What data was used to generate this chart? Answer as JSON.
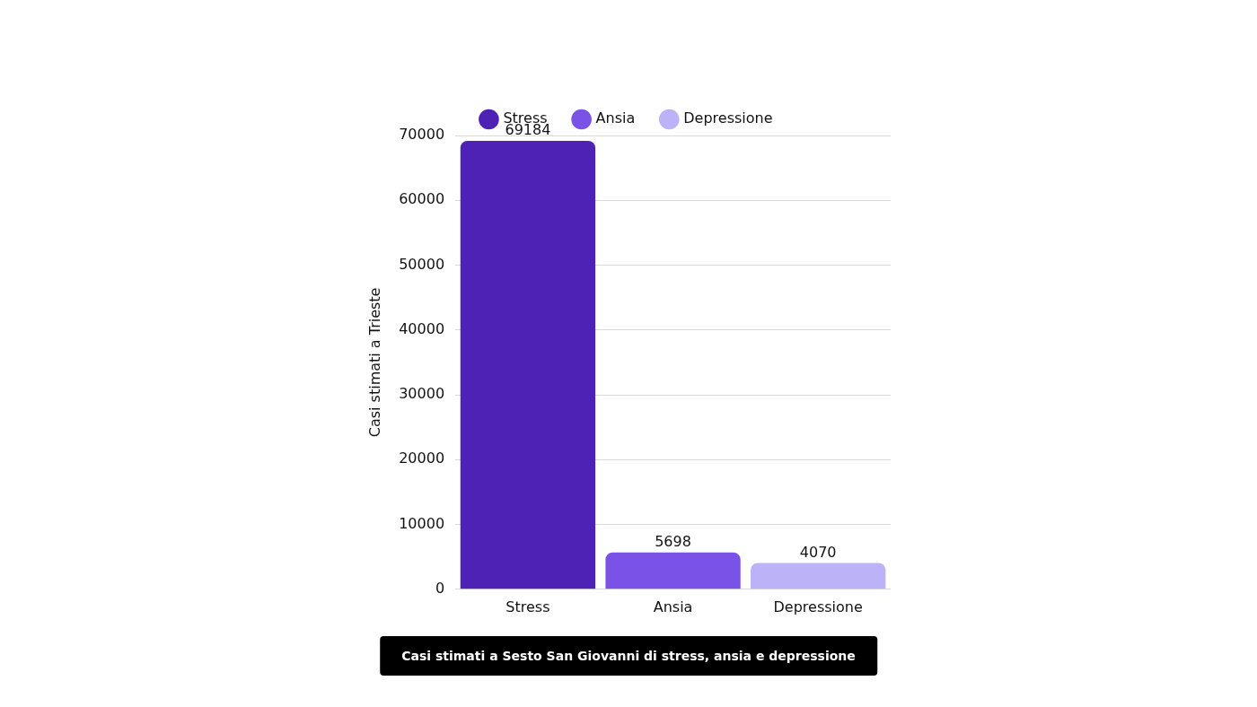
{
  "chart_data": {
    "type": "bar",
    "title": "Casi stimati a Sesto San Giovanni di stress, ansia e depressione",
    "ylabel": "Casi stimati a Trieste",
    "categories": [
      "Stress",
      "Ansia",
      "Depressione"
    ],
    "series": [
      {
        "name": "Stress",
        "color": "#4e22b5",
        "values": [
          69184,
          null,
          null
        ]
      },
      {
        "name": "Ansia",
        "color": "#7b52e8",
        "values": [
          null,
          5698,
          null
        ]
      },
      {
        "name": "Depressione",
        "color": "#bcb2f7",
        "values": [
          null,
          null,
          4070
        ]
      }
    ],
    "ylim": [
      0,
      70000
    ],
    "yticks": [
      0,
      10000,
      20000,
      30000,
      40000,
      50000,
      60000,
      70000
    ],
    "grid": "y",
    "legend": "top",
    "data_labels": true
  }
}
